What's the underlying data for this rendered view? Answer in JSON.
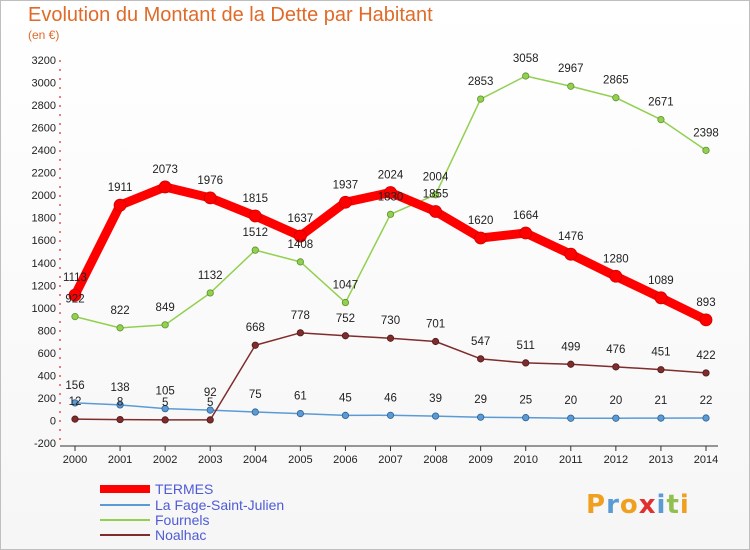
{
  "colors": {
    "title": "#e06a28",
    "termes": "#ff0000",
    "fage": "#5b9bd5",
    "fournels": "#92d050",
    "noalhac": "#7f2c2c",
    "axis_dash": "#e00000"
  },
  "logo": {
    "text": "Proxiti"
  },
  "chart_data": {
    "type": "line",
    "title": "Evolution du Montant de la Dette par Habitant",
    "subtitle": "(en €)",
    "xlabel": "",
    "ylabel": "",
    "ylim": [
      -200,
      3200
    ],
    "ytick_step": 200,
    "grid": false,
    "legend_position": "bottom-left",
    "x": [
      2000,
      2001,
      2002,
      2003,
      2004,
      2005,
      2006,
      2007,
      2008,
      2009,
      2010,
      2011,
      2012,
      2013,
      2014
    ],
    "series": [
      {
        "name": "TERMES",
        "values": [
          1113,
          1911,
          2073,
          1976,
          1815,
          1637,
          1937,
          2024,
          1855,
          1620,
          1664,
          1476,
          1280,
          1089,
          893
        ]
      },
      {
        "name": "La Fage-Saint-Julien",
        "values": [
          156,
          138,
          105,
          92,
          75,
          61,
          45,
          46,
          39,
          29,
          25,
          20,
          20,
          21,
          22
        ]
      },
      {
        "name": "Fournels",
        "values": [
          922,
          822,
          849,
          1132,
          1512,
          1408,
          1047,
          1830,
          2004,
          2853,
          3058,
          2967,
          2865,
          2671,
          2398
        ]
      },
      {
        "name": "Noalhac",
        "values": [
          12,
          8,
          5,
          5,
          668,
          778,
          752,
          730,
          701,
          547,
          511,
          499,
          476,
          451,
          422
        ]
      }
    ]
  }
}
